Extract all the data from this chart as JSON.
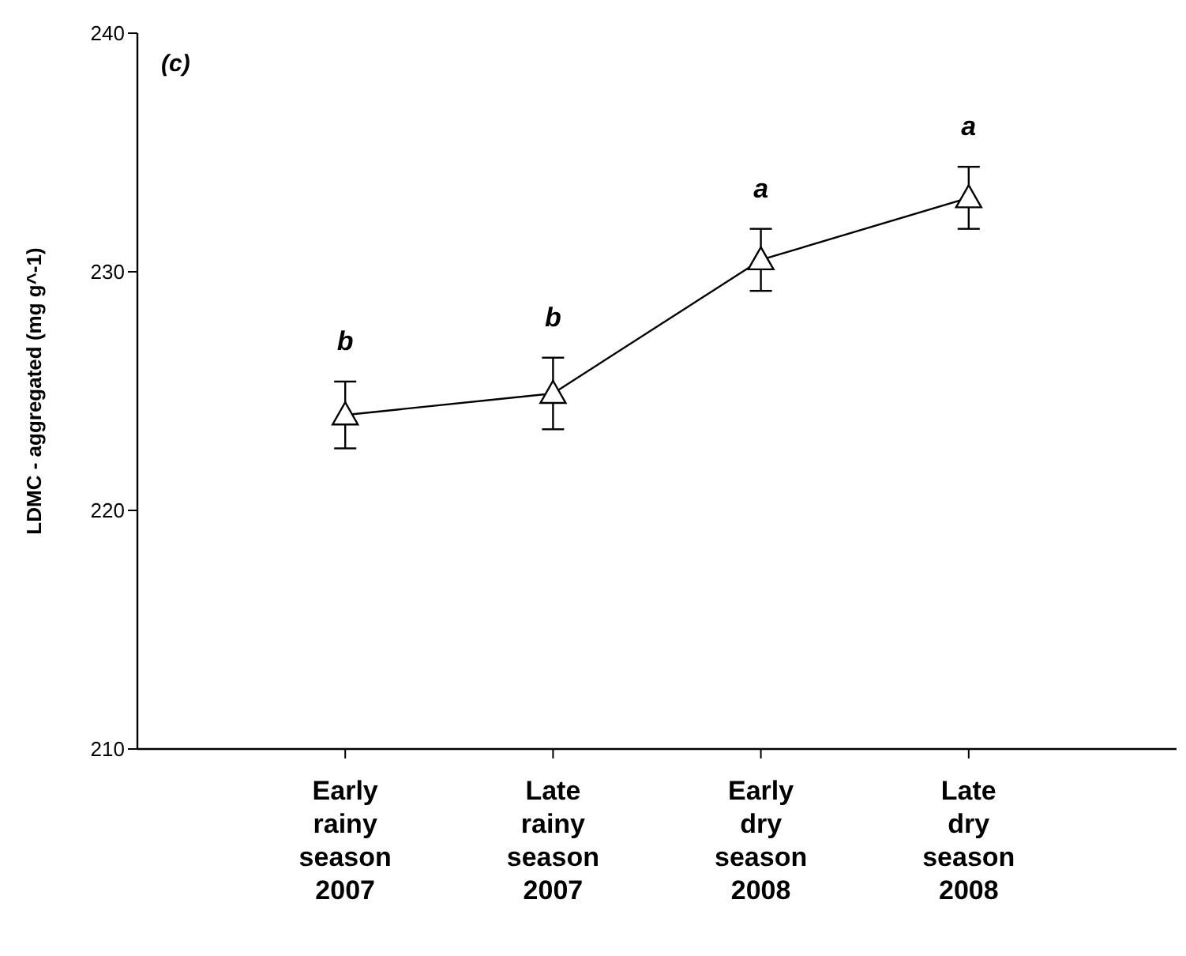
{
  "chart_data": {
    "type": "line",
    "ylabel": "LDMC - aggregated (mg g^-1)",
    "categories": [
      "Early rainy season 2007",
      "Late rainy season 2007",
      "Early dry season 2008",
      "Late dry season 2008"
    ],
    "series": [
      {
        "color": "#000000",
        "values": [
          224.0,
          224.9,
          230.5,
          233.1
        ],
        "errors": [
          1.4,
          1.5,
          1.3,
          1.3
        ]
      }
    ],
    "ylim": [
      210,
      240
    ],
    "yticks": [
      210,
      220,
      230,
      240
    ],
    "grid": false,
    "marker": "triangle",
    "line_style": "solid",
    "annotations": [
      "(c)",
      "b",
      "b",
      "a",
      "a"
    ]
  }
}
